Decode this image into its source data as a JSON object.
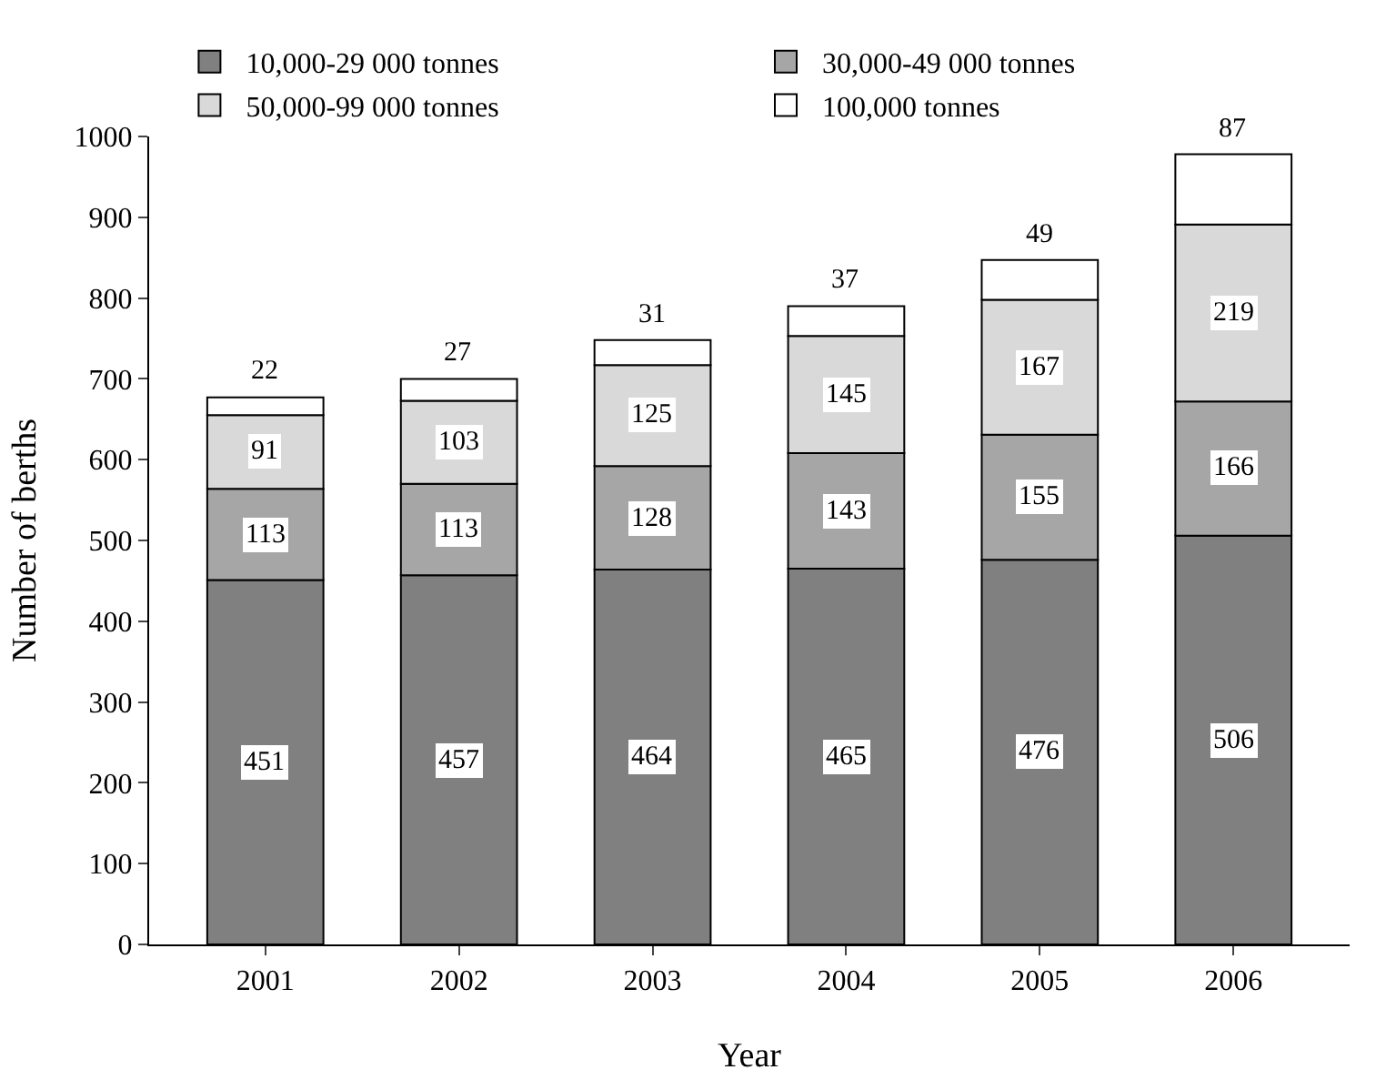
{
  "chart_data": {
    "type": "bar",
    "stacked": true,
    "xlabel": "Year",
    "ylabel": "Number of berths",
    "categories": [
      "2001",
      "2002",
      "2003",
      "2004",
      "2005",
      "2006"
    ],
    "series": [
      {
        "name": "10,000-29 000 tonnes",
        "color": "#808080",
        "values": [
          451,
          457,
          464,
          465,
          476,
          506
        ]
      },
      {
        "name": "30,000-49 000 tonnes",
        "color": "#a6a6a6",
        "values": [
          113,
          113,
          128,
          143,
          155,
          166
        ]
      },
      {
        "name": "50,000-99 000 tonnes",
        "color": "#d9d9d9",
        "values": [
          91,
          103,
          125,
          145,
          167,
          219
        ]
      },
      {
        "name": "100,000 tonnes",
        "color": "#ffffff",
        "values": [
          22,
          27,
          31,
          37,
          49,
          87
        ]
      }
    ],
    "ylim": [
      0,
      1000
    ],
    "yticks": [
      0,
      100,
      200,
      300,
      400,
      500,
      600,
      700,
      800,
      900,
      1000
    ],
    "data_labels": true,
    "legend": "top"
  }
}
